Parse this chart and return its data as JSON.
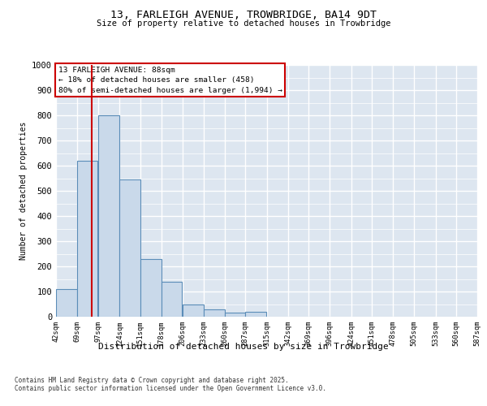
{
  "title": "13, FARLEIGH AVENUE, TROWBRIDGE, BA14 9DT",
  "subtitle": "Size of property relative to detached houses in Trowbridge",
  "xlabel": "Distribution of detached houses by size in Trowbridge",
  "ylabel": "Number of detached properties",
  "footnote1": "Contains HM Land Registry data © Crown copyright and database right 2025.",
  "footnote2": "Contains public sector information licensed under the Open Government Licence v3.0.",
  "annotation_line1": "13 FARLEIGH AVENUE: 88sqm",
  "annotation_line2": "← 18% of detached houses are smaller (458)",
  "annotation_line3": "80% of semi-detached houses are larger (1,994) →",
  "property_size_sqm": 88,
  "bar_color": "#c9d9ea",
  "bar_edge_color": "#5b8db8",
  "vline_color": "#cc0000",
  "bg_color": "#dde6f0",
  "grid_color": "#ffffff",
  "bins": [
    42,
    69,
    97,
    124,
    151,
    178,
    206,
    233,
    260,
    287,
    315,
    342,
    369,
    396,
    424,
    451,
    478,
    505,
    533,
    560,
    587
  ],
  "counts": [
    110,
    620,
    800,
    545,
    230,
    140,
    50,
    30,
    15,
    18,
    0,
    0,
    0,
    0,
    0,
    0,
    0,
    0,
    0,
    0
  ],
  "ylim": [
    0,
    1000
  ],
  "yticks": [
    0,
    100,
    200,
    300,
    400,
    500,
    600,
    700,
    800,
    900,
    1000
  ]
}
